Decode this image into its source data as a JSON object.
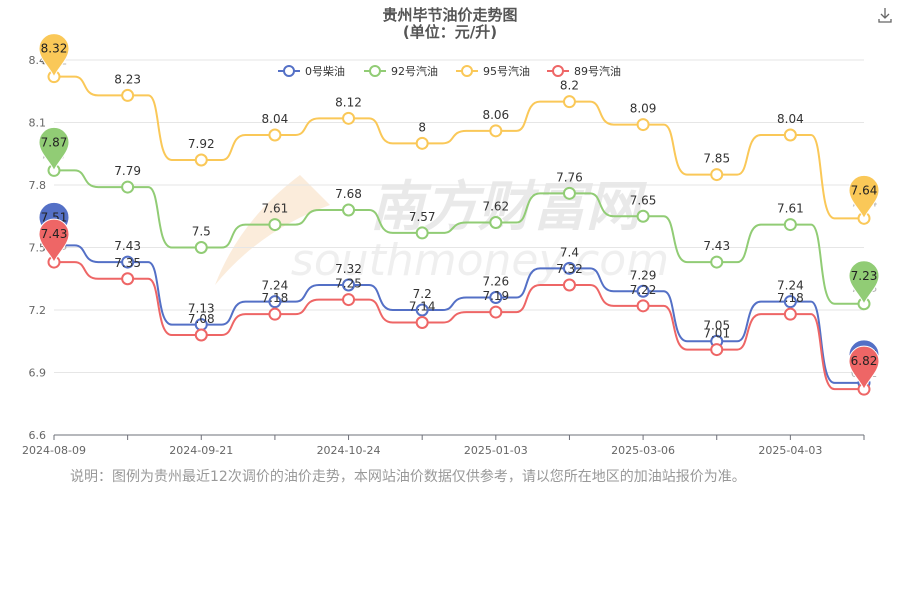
{
  "chart_data": {
    "type": "line",
    "title": "贵州毕节油价走势图",
    "subtitle": "(单位：元/升)",
    "x": [
      "2024-08-09",
      "",
      "2024-09-21",
      "",
      "2024-10-24",
      "",
      "2025-01-03",
      "",
      "2025-03-06",
      "",
      "2025-04-03",
      ""
    ],
    "xlabel": "",
    "ylabel": "",
    "ylim": [
      6.6,
      8.4
    ],
    "yticks": [
      "6.6",
      "6.9",
      "7.2",
      "7.5",
      "7.8",
      "8.1",
      "8.4"
    ],
    "grid": true,
    "legend_position": "top-center",
    "series": [
      {
        "name": "0号柴油",
        "color": "#5470c6",
        "values": [
          7.51,
          7.43,
          7.13,
          7.24,
          7.32,
          7.2,
          7.26,
          7.4,
          7.29,
          7.05,
          7.24,
          6.85
        ]
      },
      {
        "name": "92号汽油",
        "color": "#91cc75",
        "values": [
          7.87,
          7.79,
          7.5,
          7.61,
          7.68,
          7.57,
          7.62,
          7.76,
          7.65,
          7.43,
          7.61,
          7.23
        ]
      },
      {
        "name": "95号汽油",
        "color": "#fac858",
        "values": [
          8.32,
          8.23,
          7.92,
          8.04,
          8.12,
          8.0,
          8.06,
          8.2,
          8.09,
          7.85,
          8.04,
          7.64
        ]
      },
      {
        "name": "89号汽油",
        "color": "#ee6666",
        "values": [
          7.43,
          7.35,
          7.08,
          7.18,
          7.25,
          7.14,
          7.19,
          7.32,
          7.22,
          7.01,
          7.18,
          6.82
        ]
      }
    ],
    "value_labels": [
      [
        "7.51",
        "7.43",
        "7.13",
        "7.24",
        "7.32",
        "7.2",
        "7.26",
        "7.4",
        "7.29",
        "7.05",
        "7.24",
        "6.85"
      ],
      [
        "7.87",
        "7.79",
        "7.5",
        "7.61",
        "7.68",
        "7.57",
        "7.62",
        "7.76",
        "7.65",
        "7.43",
        "7.61",
        "7.23"
      ],
      [
        "8.32",
        "8.23",
        "7.92",
        "8.04",
        "8.12",
        "8",
        "8.06",
        "8.2",
        "8.09",
        "7.85",
        "8.04",
        "7.64"
      ],
      [
        "7.43",
        "7.35",
        "7.08",
        "7.18",
        "7.25",
        "7.14",
        "7.19",
        "7.32",
        "7.22",
        "7.01",
        "7.18",
        "6.82"
      ]
    ],
    "markers": "max-min pins on first and last points"
  },
  "watermark": {
    "cn": "南方财富网",
    "en": "southmoney.com"
  },
  "note": "说明：图例为贵州最近12次调价的油价走势，本网站油价数据仅供参考，请以您所在地区的加油站报价为准。",
  "toolbar": {
    "download_icon": "download-icon"
  }
}
